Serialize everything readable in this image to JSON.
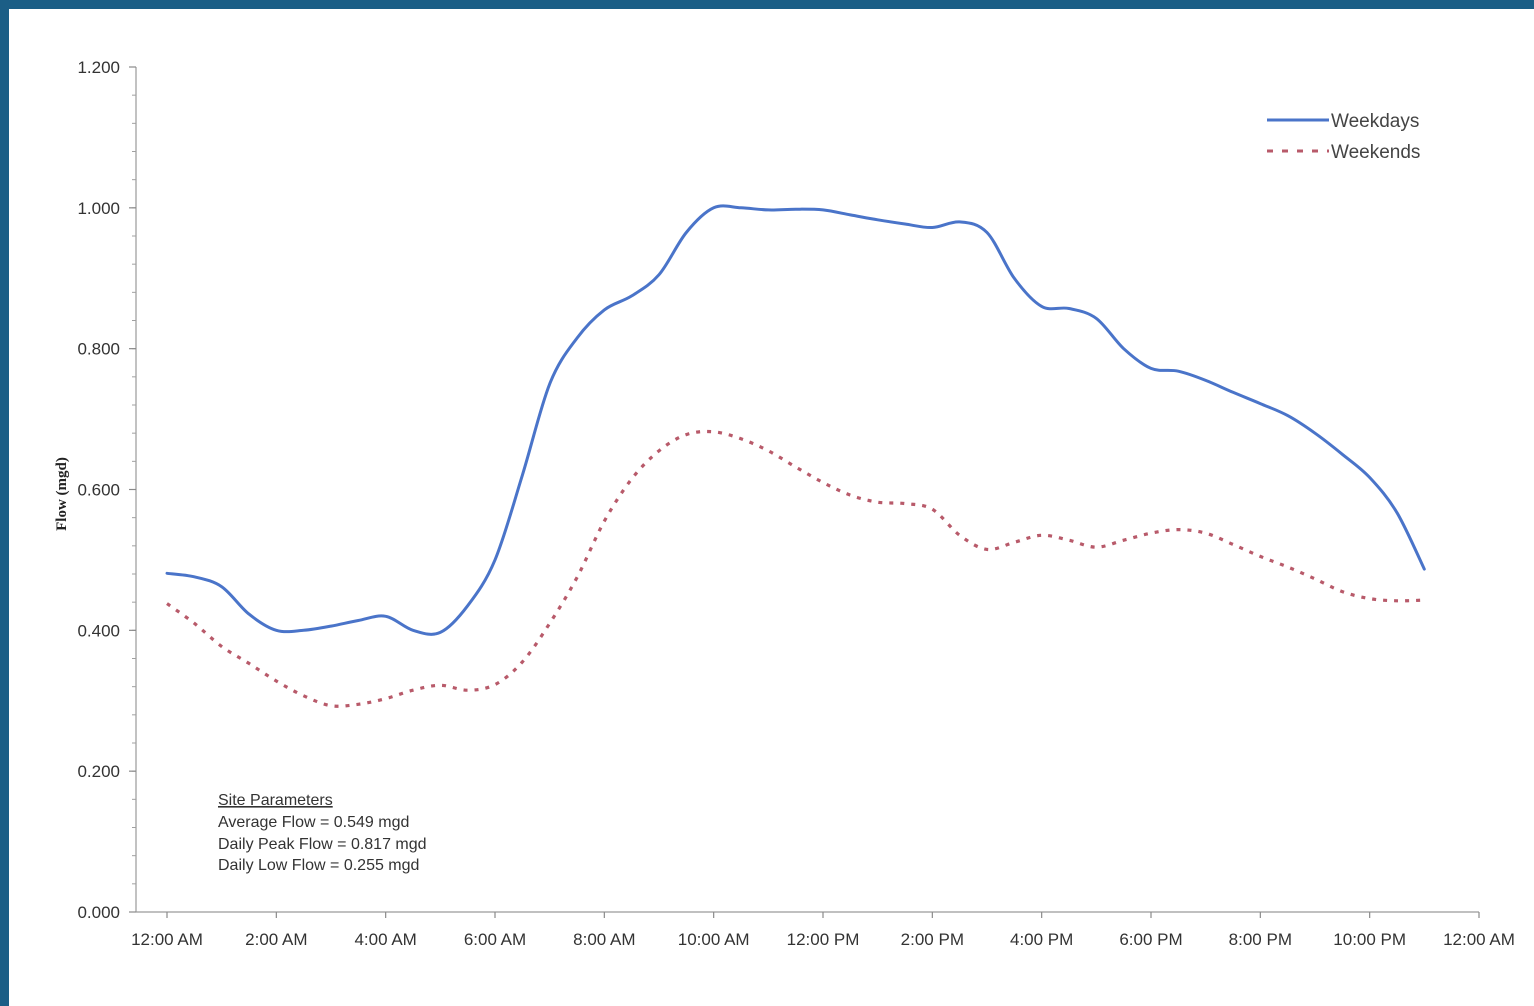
{
  "chart_data": {
    "type": "line",
    "title": "",
    "xlabel": "",
    "ylabel": "Flow (mgd)",
    "ylim": [
      0,
      1.2
    ],
    "x_range_hours": [
      0,
      24
    ],
    "y_ticks": [
      "0.000",
      "0.200",
      "0.400",
      "0.600",
      "0.800",
      "1.000",
      "1.200"
    ],
    "x_ticks": [
      "12:00 AM",
      "2:00 AM",
      "4:00 AM",
      "6:00 AM",
      "8:00 AM",
      "10:00 AM",
      "12:00 PM",
      "2:00 PM",
      "4:00 PM",
      "6:00 PM",
      "8:00 PM",
      "10:00 PM",
      "12:00 AM"
    ],
    "grid": false,
    "legend_position": "top-right",
    "series": [
      {
        "name": "Weekdays",
        "color": "#4a74c9",
        "style": "solid",
        "points": [
          [
            0,
            0.481
          ],
          [
            0.5,
            0.476
          ],
          [
            1,
            0.462
          ],
          [
            1.5,
            0.423
          ],
          [
            2,
            0.4
          ],
          [
            2.5,
            0.4
          ],
          [
            3,
            0.406
          ],
          [
            3.5,
            0.414
          ],
          [
            4,
            0.42
          ],
          [
            4.5,
            0.4
          ],
          [
            5,
            0.397
          ],
          [
            5.5,
            0.435
          ],
          [
            6,
            0.5
          ],
          [
            6.5,
            0.62
          ],
          [
            7,
            0.75
          ],
          [
            7.5,
            0.815
          ],
          [
            8,
            0.855
          ],
          [
            8.5,
            0.875
          ],
          [
            9,
            0.905
          ],
          [
            9.5,
            0.965
          ],
          [
            10,
            1.0
          ],
          [
            10.5,
            1.0
          ],
          [
            11,
            0.997
          ],
          [
            11.5,
            0.998
          ],
          [
            12,
            0.997
          ],
          [
            12.5,
            0.99
          ],
          [
            13,
            0.983
          ],
          [
            13.5,
            0.977
          ],
          [
            14,
            0.972
          ],
          [
            14.5,
            0.98
          ],
          [
            15,
            0.965
          ],
          [
            15.5,
            0.9
          ],
          [
            16,
            0.86
          ],
          [
            16.5,
            0.857
          ],
          [
            17,
            0.843
          ],
          [
            17.5,
            0.8
          ],
          [
            18,
            0.772
          ],
          [
            18.5,
            0.768
          ],
          [
            19,
            0.755
          ],
          [
            19.5,
            0.738
          ],
          [
            20,
            0.722
          ],
          [
            20.5,
            0.705
          ],
          [
            21,
            0.68
          ],
          [
            21.5,
            0.65
          ],
          [
            22,
            0.617
          ],
          [
            22.5,
            0.567
          ],
          [
            23,
            0.487
          ]
        ]
      },
      {
        "name": "Weekends",
        "color": "#b85a6a",
        "style": "dotted",
        "points": [
          [
            0,
            0.438
          ],
          [
            0.5,
            0.41
          ],
          [
            1,
            0.377
          ],
          [
            1.5,
            0.353
          ],
          [
            2,
            0.328
          ],
          [
            2.5,
            0.307
          ],
          [
            3,
            0.293
          ],
          [
            3.5,
            0.295
          ],
          [
            4,
            0.303
          ],
          [
            4.5,
            0.315
          ],
          [
            5,
            0.322
          ],
          [
            5.5,
            0.315
          ],
          [
            6,
            0.323
          ],
          [
            6.5,
            0.355
          ],
          [
            7,
            0.41
          ],
          [
            7.5,
            0.475
          ],
          [
            8,
            0.555
          ],
          [
            8.5,
            0.615
          ],
          [
            9,
            0.655
          ],
          [
            9.5,
            0.678
          ],
          [
            10,
            0.682
          ],
          [
            10.5,
            0.672
          ],
          [
            11,
            0.655
          ],
          [
            11.5,
            0.632
          ],
          [
            12,
            0.61
          ],
          [
            12.5,
            0.592
          ],
          [
            13,
            0.582
          ],
          [
            13.5,
            0.58
          ],
          [
            14,
            0.572
          ],
          [
            14.5,
            0.535
          ],
          [
            15,
            0.515
          ],
          [
            15.5,
            0.525
          ],
          [
            16,
            0.535
          ],
          [
            16.5,
            0.528
          ],
          [
            17,
            0.518
          ],
          [
            17.5,
            0.528
          ],
          [
            18,
            0.538
          ],
          [
            18.5,
            0.543
          ],
          [
            19,
            0.538
          ],
          [
            19.5,
            0.522
          ],
          [
            20,
            0.505
          ],
          [
            20.5,
            0.49
          ],
          [
            21,
            0.473
          ],
          [
            21.5,
            0.455
          ],
          [
            22,
            0.445
          ],
          [
            22.5,
            0.442
          ],
          [
            23,
            0.443
          ]
        ]
      }
    ],
    "annotations": {
      "heading": "Site Parameters",
      "lines": [
        "Average Flow = 0.549 mgd",
        "Daily Peak Flow = 0.817 mgd",
        "Daily Low Flow = 0.255 mgd"
      ]
    }
  }
}
